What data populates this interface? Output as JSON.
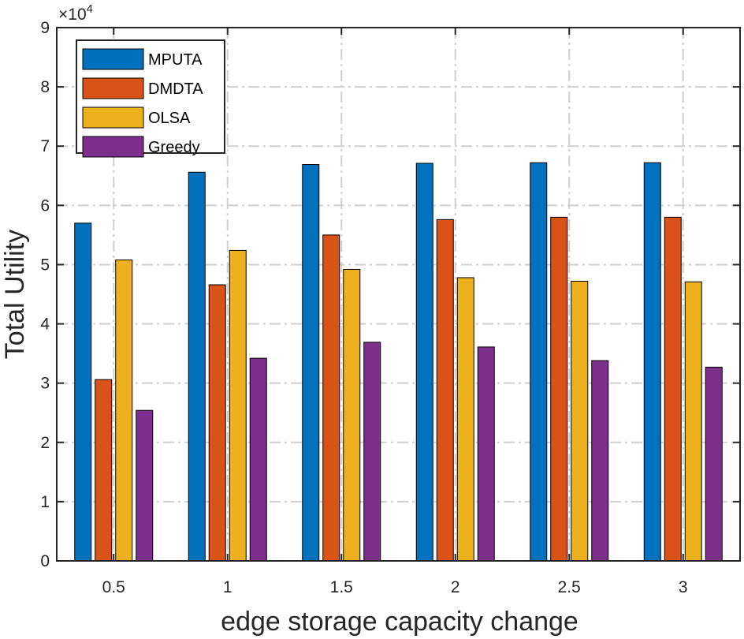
{
  "chart_data": {
    "type": "bar",
    "title": "",
    "xlabel": "edge storage capacity change",
    "ylabel": "Total Utility",
    "y_exponent_label": "×10",
    "y_exponent_power": "4",
    "categories": [
      "0.5",
      "1",
      "1.5",
      "2",
      "2.5",
      "3"
    ],
    "y_ticks": [
      "0",
      "1",
      "2",
      "3",
      "4",
      "5",
      "6",
      "7",
      "8",
      "9"
    ],
    "ylim": [
      0,
      90000
    ],
    "grid": true,
    "legend_position": "top-left",
    "series": [
      {
        "name": "MPUTA",
        "color": "#0072BD",
        "values": [
          57000,
          65600,
          66900,
          67100,
          67200,
          67200
        ]
      },
      {
        "name": "DMDTA",
        "color": "#D95319",
        "values": [
          30600,
          46600,
          55000,
          57600,
          58000,
          58000
        ]
      },
      {
        "name": "OLSA",
        "color": "#EDB120",
        "values": [
          50800,
          52400,
          49200,
          47800,
          47200,
          47100
        ]
      },
      {
        "name": "Greedy",
        "color": "#7E2F8E",
        "values": [
          25400,
          34200,
          36900,
          36100,
          33800,
          32700
        ]
      }
    ]
  }
}
